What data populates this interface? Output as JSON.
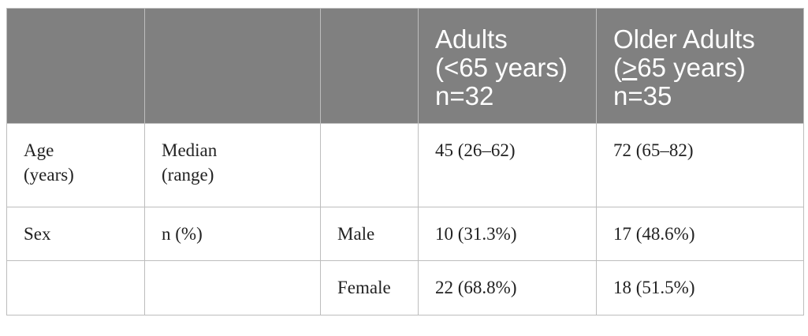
{
  "header": {
    "col4": {
      "line1": "Adults",
      "line2": "(<65 years)",
      "line3": "n=32"
    },
    "col5": {
      "line1": "Older Adults",
      "line2_symbol": ">",
      "line2_rest": "65 years)",
      "line2_prefix": "(",
      "line3": "n=35"
    }
  },
  "rows": [
    {
      "label_line1": "Age",
      "label_line2": "(years)",
      "stat_line1": "Median",
      "stat_line2": "(range)",
      "category": "",
      "adults": "45 (26–62)",
      "older": "72 (65–82)"
    },
    {
      "label_line1": "Sex",
      "label_line2": "",
      "stat_line1": "n (%)",
      "stat_line2": "",
      "category": "Male",
      "adults": "10 (31.3%)",
      "older": "17 (48.6%)"
    },
    {
      "label_line1": "",
      "label_line2": "",
      "stat_line1": "",
      "stat_line2": "",
      "category": "Female",
      "adults": "22 (68.8%)",
      "older": "18 (51.5%)"
    }
  ]
}
